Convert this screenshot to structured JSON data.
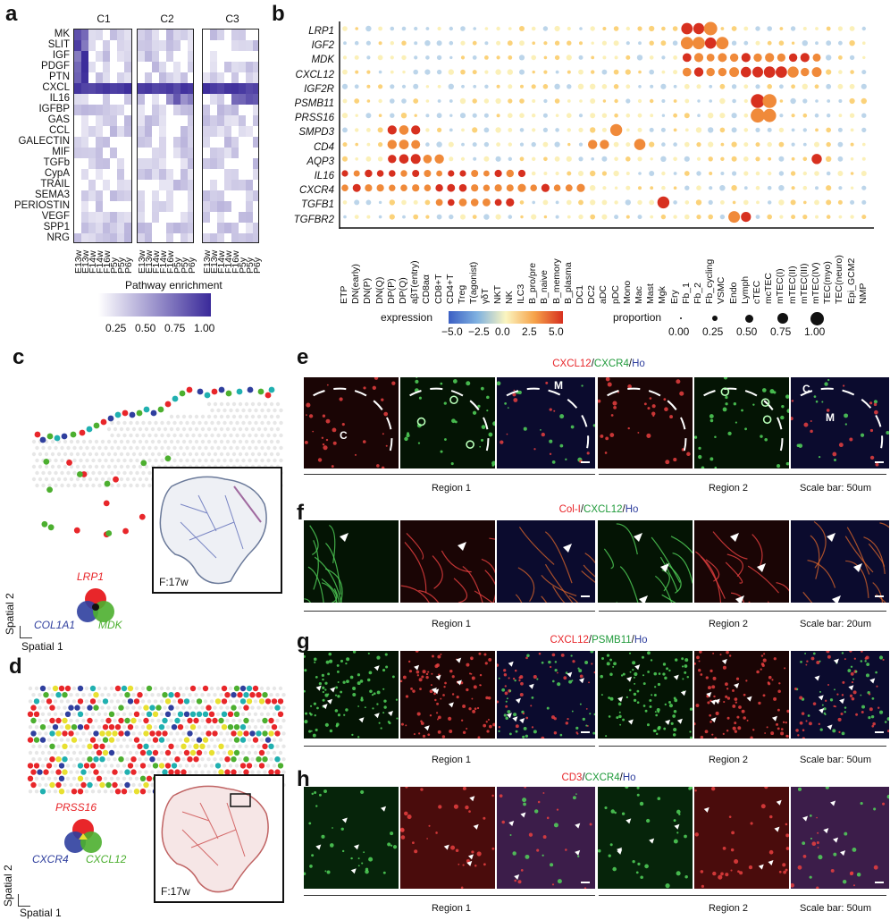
{
  "panels": {
    "a": "a",
    "b": "b",
    "c": "c",
    "d": "d",
    "e": "e",
    "f": "f",
    "g": "g",
    "h": "h"
  },
  "panel_a": {
    "groups": [
      "C1",
      "C2",
      "C3"
    ],
    "genes": [
      "MK",
      "SLIT",
      "IGF",
      "PDGF",
      "PTN",
      "CXCL",
      "IL16",
      "IGFBP",
      "GAS",
      "CCL",
      "GALECTIN",
      "MIF",
      "TGFb",
      "CypA",
      "TRAIL",
      "SEMA3",
      "PERIOSTIN",
      "VEGF",
      "SPP1",
      "NRG"
    ],
    "xticks": [
      "E13w",
      "E13w",
      "F14w",
      "F14w",
      "F16w",
      "P5y",
      "P5y",
      "P6y"
    ],
    "legend_title": "Pathway enrichment",
    "legend_ticks": [
      "0.25",
      "0.50",
      "0.75",
      "1.00"
    ],
    "colors": {
      "low": "#ffffff",
      "high": "#3a2a9a"
    }
  },
  "panel_b": {
    "genes": [
      "LRP1",
      "IGF2",
      "MDK",
      "CXCL12",
      "IGF2R",
      "PSMB11",
      "PRSS16",
      "SMPD3",
      "CD4",
      "AQP3",
      "IL16",
      "CXCR4",
      "TGFB1",
      "TGFBR2"
    ],
    "cells": [
      "ETP",
      "DN(early)",
      "DN(P)",
      "DN(Q)",
      "DP(P)",
      "DP(Q)",
      "aβT(entry)",
      "CD8aα",
      "CD8+T",
      "CD4+T",
      "Treg",
      "T(agonist)",
      "γδT",
      "NKT",
      "NK",
      "ILC3",
      "B_pro/pre",
      "B_naive",
      "B_memory",
      "B_plasma",
      "DC1",
      "DC2",
      "aDC",
      "pDC",
      "Mono",
      "Mac",
      "Mast",
      "Mgk",
      "Ery",
      "Fb_1",
      "Fb_2",
      "Fb_cycling",
      "VSMC",
      "Endo",
      "Lymph",
      "cTEC",
      "mcTEC",
      "mTEC(I)",
      "mTEC(II)",
      "mTEC(III)",
      "mTEC(IV)",
      "TEC(myo)",
      "TEC(neuro)",
      "Epi_GCM2",
      "NMP"
    ],
    "expression_title": "expression",
    "expression_ticks": [
      "−5.0",
      "−2.5",
      "0.0",
      "2.5",
      "5.0"
    ],
    "proportion_title": "proportion",
    "proportion_ticks": [
      "0.00",
      "0.25",
      "0.50",
      "0.75",
      "1.00"
    ],
    "colors": {
      "neg": "#3b5fc4",
      "zero": "#fbf5c0",
      "pos": "#d7301f"
    }
  },
  "panel_c": {
    "gene_top": "LRP1",
    "gene_left": "COL1A1",
    "gene_right": "MDK",
    "axis_y": "Spatial 2",
    "axis_x": "Spatial 1",
    "sample": "F:17w",
    "colors": {
      "top": "#e8262a",
      "left": "#2f3f9e",
      "right": "#4caf2f"
    }
  },
  "panel_d": {
    "gene_top": "PRSS16",
    "gene_left": "CXCR4",
    "gene_right": "CXCL12",
    "axis_y": "Spatial 2",
    "axis_x": "Spatial 1",
    "sample": "F:17w",
    "colors": {
      "top": "#e8262a",
      "left": "#2f3f9e",
      "right": "#4caf2f"
    }
  },
  "panel_e": {
    "t1": "CXCL12",
    "s1": "/",
    "t2": "CXCR4",
    "s2": "/",
    "t3": "Ho",
    "region1": "Region 1",
    "region2": "Region 2",
    "scale": "Scale bar: 50um",
    "m1": "M",
    "c1": "C",
    "m2": "M",
    "c2": "C"
  },
  "panel_f": {
    "t1": "Col-I",
    "s1": "/",
    "t2": "CXCL12",
    "s2": "/",
    "t3": "Ho",
    "region1": "Region 1",
    "region2": "Region 2",
    "scale": "Scale bar: 20um"
  },
  "panel_g": {
    "t1": "CXCL12",
    "s1": "/",
    "t2": "PSMB11",
    "s2": "/",
    "t3": "Ho",
    "region1": "Region 1",
    "region2": "Region 2",
    "scale": "Scale bar: 50um"
  },
  "panel_h": {
    "t1": "CD3",
    "s1": "/",
    "t2": "CXCR4",
    "s2": "/",
    "t3": "Ho",
    "region1": "Region 1",
    "region2": "Region 2",
    "scale": "Scale bar: 50um"
  },
  "colors": {
    "red": "#e8262a",
    "green": "#1f9a3a",
    "blue": "#2f3f9e"
  }
}
